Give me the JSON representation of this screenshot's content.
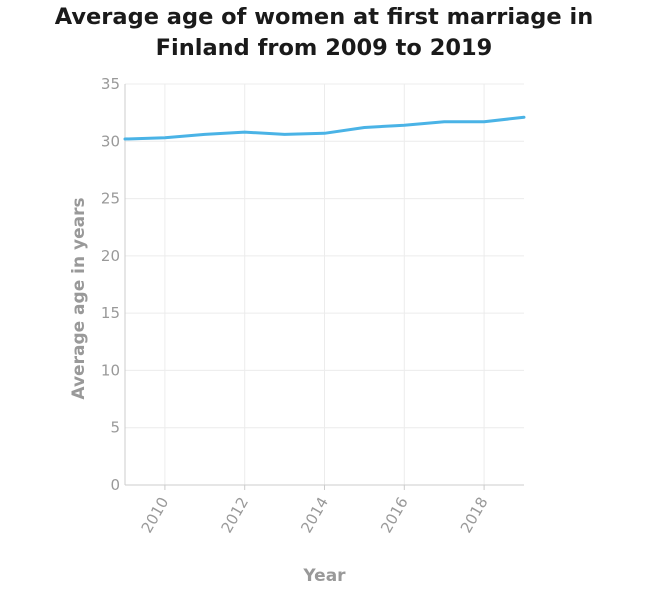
{
  "chart_data": {
    "type": "line",
    "title_lines": [
      "Average age of women at first marriage in",
      "Finland from 2009 to 2019"
    ],
    "xlabel": "Year",
    "ylabel": "Average age in years",
    "xlim": [
      2009,
      2019
    ],
    "ylim": [
      0,
      35
    ],
    "x_ticks": [
      2010,
      2012,
      2014,
      2016,
      2018
    ],
    "y_ticks": [
      0,
      5,
      10,
      15,
      20,
      25,
      30,
      35
    ],
    "grid": true,
    "colors": {
      "line": "#4ab3e6",
      "grid": "#ececec",
      "axis": "#cccccc"
    },
    "series": [
      {
        "x": [
          2009,
          2010,
          2011,
          2012,
          2013,
          2014,
          2015,
          2016,
          2017,
          2018,
          2019
        ],
        "values": [
          30.2,
          30.3,
          30.6,
          30.8,
          30.6,
          30.7,
          31.2,
          31.4,
          31.7,
          31.7,
          32.1
        ]
      }
    ]
  }
}
